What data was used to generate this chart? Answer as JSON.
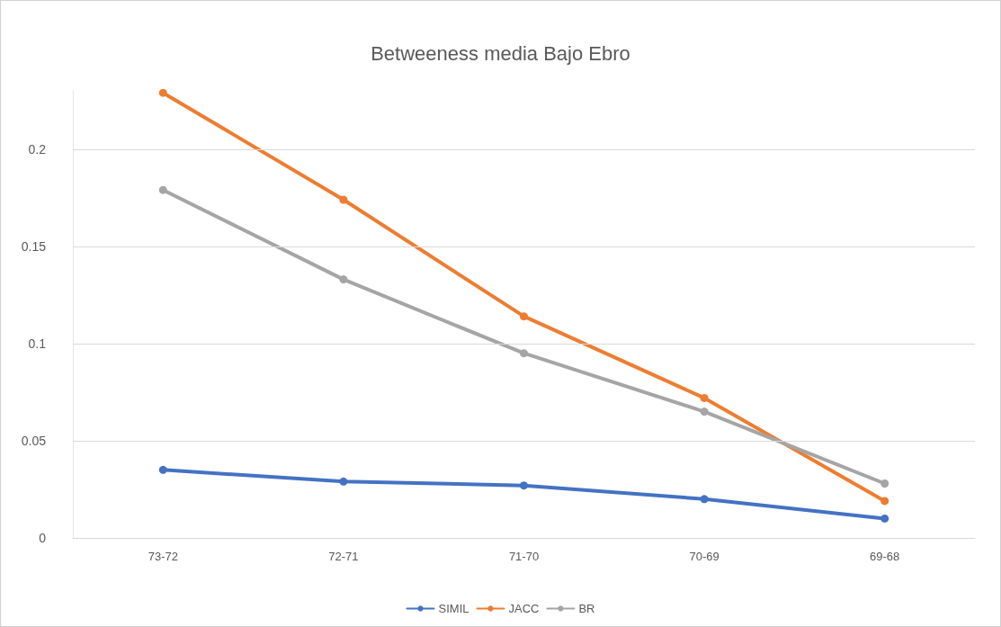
{
  "chart_data": {
    "type": "line",
    "title": "Betweeness media Bajo Ebro",
    "categories": [
      "73-72",
      "72-71",
      "71-70",
      "70-69",
      "69-68"
    ],
    "series": [
      {
        "name": "SIMIL",
        "color": "#4472c4",
        "values": [
          0.035,
          0.029,
          0.027,
          0.02,
          0.01
        ]
      },
      {
        "name": "JACC",
        "color": "#ed7d31",
        "values": [
          0.229,
          0.174,
          0.114,
          0.072,
          0.019
        ]
      },
      {
        "name": "BR",
        "color": "#a5a5a5",
        "values": [
          0.179,
          0.133,
          0.095,
          0.065,
          0.028
        ]
      }
    ],
    "ylim": [
      0,
      0.23
    ],
    "yticks": [
      0,
      0.05,
      0.1,
      0.15,
      0.2
    ],
    "grid": "y",
    "legend": "bottom",
    "marker": "circle",
    "line_style": "solid"
  }
}
